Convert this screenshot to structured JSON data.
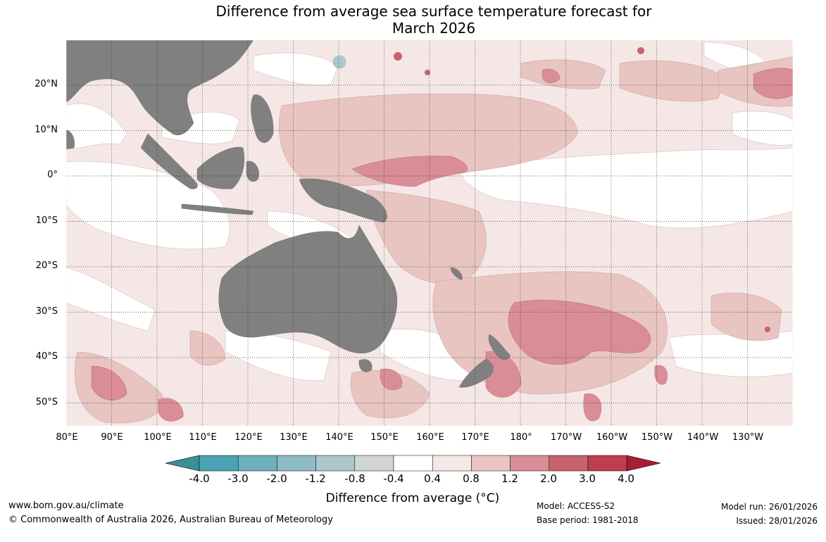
{
  "title": {
    "line1": "Difference from average sea surface temperature forecast for",
    "line2": "March 2026"
  },
  "map": {
    "lat_labels": [
      "20°N",
      "10°N",
      "0°",
      "10°S",
      "20°S",
      "30°S",
      "40°S",
      "50°S"
    ],
    "lon_labels": [
      "80°E",
      "90°E",
      "100°E",
      "110°E",
      "120°E",
      "130°E",
      "140°E",
      "150°E",
      "160°E",
      "170°E",
      "180°",
      "170°W",
      "160°W",
      "150°W",
      "140°W",
      "130°W"
    ],
    "land_color": "#808080",
    "ocean_color": "#ffffff"
  },
  "colorbar": {
    "ticks": [
      "-4.0",
      "-3.0",
      "-2.0",
      "-1.2",
      "-0.8",
      "-0.4",
      "0.4",
      "0.8",
      "1.2",
      "2.0",
      "3.0",
      "4.0"
    ],
    "colors": [
      "#3b8f99",
      "#4aa3b3",
      "#6fb0bd",
      "#8ebbc4",
      "#aac8cb",
      "#d3d5d3",
      "#ffffff",
      "#f5e7e5",
      "#e8c5c1",
      "#d98d96",
      "#c7636f",
      "#be3e4c",
      "#a91c36"
    ],
    "label": "Difference from average (°C)"
  },
  "footer": {
    "website": "www.bom.gov.au/climate",
    "copyright": "© Commonwealth of Australia 2026, Australian Bureau of Meteorology",
    "model": "Model: ACCESS-S2",
    "base_period": "Base period: 1981-2018",
    "model_run": "Model run: 26/01/2026",
    "issued": "Issued: 28/01/2026"
  }
}
